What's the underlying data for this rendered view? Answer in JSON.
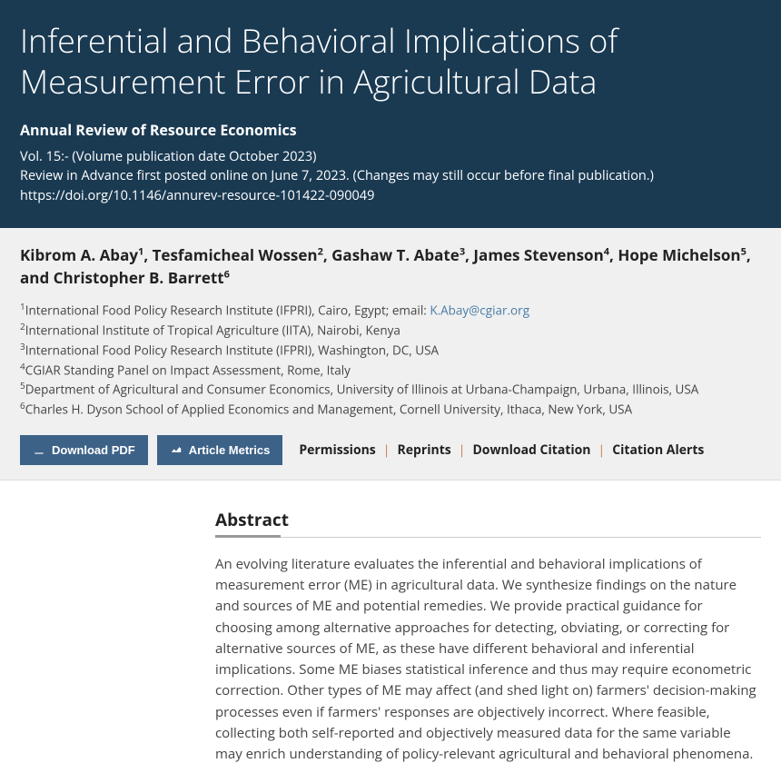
{
  "header": {
    "title": "Inferential and Behavioral Implications of Measurement Error in Agricultural Data",
    "journal": "Annual Review of Resource Economics",
    "vol": "Vol. 15:- (Volume publication date October 2023)",
    "advance": "Review in Advance first posted online on June 7, 2023. (Changes may still occur before final publication.)",
    "doi": "https://doi.org/10.1146/annurev-resource-101422-090049",
    "header_bg": "#1a3a52"
  },
  "authors": [
    {
      "name": "Kibrom A. Abay",
      "sup": "1",
      "after": ", "
    },
    {
      "name": "Tesfamicheal Wossen",
      "sup": "2",
      "after": ", "
    },
    {
      "name": "Gashaw T. Abate",
      "sup": "3",
      "after": ", "
    },
    {
      "name": "James Stevenson",
      "sup": "4",
      "after": ", "
    },
    {
      "name": "Hope Michelson",
      "sup": "5",
      "after": ", and "
    },
    {
      "name": "Christopher B. Barrett",
      "sup": "6",
      "after": ""
    }
  ],
  "affiliations": [
    {
      "sup": "1",
      "text": "International Food Policy Research Institute (IFPRI), Cairo, Egypt; email: ",
      "email": "K.Abay@cgiar.org"
    },
    {
      "sup": "2",
      "text": "International Institute of Tropical Agriculture (IITA), Nairobi, Kenya",
      "email": ""
    },
    {
      "sup": "3",
      "text": "International Food Policy Research Institute (IFPRI), Washington, DC, USA",
      "email": ""
    },
    {
      "sup": "4",
      "text": "CGIAR Standing Panel on Impact Assessment, Rome, Italy",
      "email": ""
    },
    {
      "sup": "5",
      "text": "Department of Agricultural and Consumer Economics, University of Illinois at Urbana-Champaign, Urbana, Illinois, USA",
      "email": ""
    },
    {
      "sup": "6",
      "text": "Charles H. Dyson School of Applied Economics and Management, Cornell University, Ithaca, New York, USA",
      "email": ""
    }
  ],
  "buttons": {
    "download": "Download PDF",
    "metrics": "Article Metrics",
    "btn_bg": "#3d6288"
  },
  "links": [
    "Permissions",
    "Reprints",
    "Download Citation",
    "Citation Alerts"
  ],
  "link_sep_color": "#c97a4a",
  "abstract": {
    "heading": "Abstract",
    "text": "An evolving literature evaluates the inferential and behavioral implications of measurement error (ME) in agricultural data. We synthesize findings on the nature and sources of ME and potential remedies. We provide practical guidance for choosing among alternative approaches for detecting, obviating, or correcting for alternative sources of ME, as these have different behavioral and inferential implications. Some ME biases statistical inference and thus may require econometric correction. Other types of ME may affect (and shed light on) farmers' decision-making processes even if farmers' responses are objectively incorrect. Where feasible, collecting both self-reported and objectively measured data for the same variable may enrich understanding of policy-relevant agricultural and behavioral phenomena."
  }
}
